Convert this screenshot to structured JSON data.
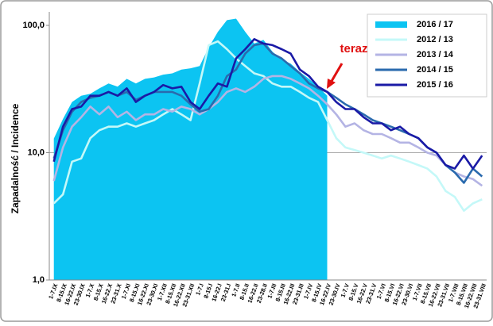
{
  "chart_data": {
    "type": "line",
    "y_label": "Zapadalność / Incidence",
    "annotation": "teraz",
    "log_y": true,
    "grid": true,
    "legend": "upper right",
    "categories": [
      "1-7.IX",
      "8-15.IX",
      "16-22.IX",
      "23-30.IX",
      "1-7.X",
      "8-15.X",
      "16-22.X",
      "23-31.X",
      "1-7.XI",
      "8-15.XI",
      "16-22.XI",
      "23-30.XI",
      "1-7.XII",
      "8-15.XII",
      "16-22.XII",
      "23-31.XII",
      "1-7.I",
      "8-15.I",
      "16-22.I",
      "23-31.I",
      "1-7.II",
      "8-15.II",
      "16-22.II",
      "23-28.II",
      "1-7.III",
      "8-15.III",
      "16-22.III",
      "23-31.III",
      "1-7.IV",
      "8-15.IV",
      "16-22.IV",
      "23-30.IV",
      "1-7.V",
      "8-15.V",
      "16-22.V",
      "23-31.V",
      "1-7.VI",
      "8-15.VI",
      "16-22.VI",
      "23-30.VI",
      "1-7.VII",
      "8-15.VII",
      "16-22.VII",
      "23-31.VII",
      "1-7.VIII",
      "8-15.VIII",
      "16-22.VIII",
      "23-31.VIII"
    ],
    "ylim": [
      1,
      100
    ],
    "yticks": [
      {
        "value": 1,
        "label": "1,0"
      },
      {
        "value": 10,
        "label": "10,0"
      },
      {
        "value": 100,
        "label": "100,0"
      }
    ],
    "series": [
      {
        "name": "2016 / 17",
        "color": "#0cc4f2",
        "area": true,
        "values": [
          12.9,
          18.4,
          25,
          28,
          29,
          32,
          35,
          33,
          38,
          35,
          38,
          39,
          41,
          42,
          45,
          46,
          48,
          67,
          89,
          110,
          113,
          89,
          72,
          77,
          62,
          54,
          50,
          43,
          38,
          33,
          28,
          null,
          null,
          null,
          null,
          null,
          null,
          null,
          null,
          null,
          null,
          null,
          null,
          null,
          null,
          null,
          null,
          null
        ]
      },
      {
        "name": "2012 / 13",
        "color": "#c4f8f8",
        "values": [
          4,
          4.7,
          8.5,
          9,
          13,
          15,
          16,
          16,
          17,
          16,
          17,
          18,
          20,
          22,
          20,
          18,
          35,
          70,
          75,
          65,
          55,
          48,
          42,
          40,
          35,
          33,
          33,
          30,
          27,
          25,
          18,
          13,
          11,
          10.5,
          10,
          9.5,
          9,
          9.5,
          9,
          8.5,
          8,
          7.5,
          6.5,
          5,
          4.5,
          3.5,
          4,
          4.3
        ]
      },
      {
        "name": "2013 / 14",
        "color": "#b4b4e4",
        "values": [
          6,
          11,
          16,
          19,
          23,
          20,
          23,
          19,
          21,
          18,
          20,
          20,
          22,
          21,
          23,
          22,
          20,
          22,
          25,
          30,
          32,
          30,
          33,
          38,
          40,
          40,
          38,
          35,
          32,
          28,
          24,
          20,
          16,
          17,
          15,
          14,
          14,
          13,
          12,
          12,
          11,
          10,
          9.5,
          8,
          7,
          6.5,
          6.2,
          5.5
        ]
      },
      {
        "name": "2014 / 15",
        "color": "#2a6aae",
        "values": [
          9,
          15,
          21,
          25,
          27,
          28,
          30,
          28,
          30,
          26,
          28,
          30,
          30,
          30,
          28,
          24,
          21,
          22,
          28,
          40,
          45,
          60,
          70,
          72,
          60,
          55,
          48,
          42,
          35,
          32,
          30,
          27,
          24,
          22,
          20,
          18,
          17,
          16,
          15,
          14,
          13,
          11,
          10,
          8,
          7,
          5.8,
          7.5,
          6.5
        ]
      },
      {
        "name": "2015 / 16",
        "color": "#1a1aa6",
        "values": [
          8.5,
          16,
          22,
          23,
          28,
          28,
          30,
          28,
          32,
          25,
          28,
          30,
          34,
          32,
          33,
          25,
          22,
          28,
          35,
          33,
          55,
          65,
          78,
          72,
          70,
          65,
          60,
          45,
          40,
          33,
          30,
          25,
          22,
          22,
          19,
          17,
          17,
          15,
          16,
          14,
          13,
          11,
          10,
          8,
          7.5,
          9.5,
          7.5,
          9.5
        ]
      }
    ]
  }
}
